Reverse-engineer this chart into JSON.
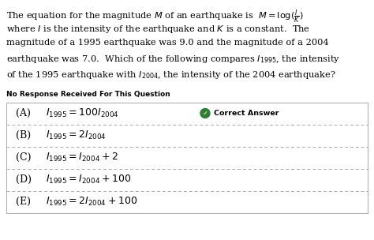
{
  "background_color": "#ffffff",
  "question_lines": [
    "The equation for the magnitude $M$ of an earthquake is  $M = \\log(\\frac{I}{K})$",
    "where $I$ is the intensity of the earthquake and $K$ is a constant.  The",
    "magnitude of a 1995 earthquake was 9.0 and the magnitude of a 2004",
    "earthquake was 7.0.  Which of the following compares $I_{1995}$, the intensity",
    "of the 1995 earthquake with $I_{2004}$, the intensity of the 2004 earthquake?"
  ],
  "no_response_label": "No Response Received For This Question",
  "choices": [
    {
      "label": "(A)",
      "formula": "$I_{1995} = 100I_{2004}$",
      "correct": true
    },
    {
      "label": "(B)",
      "formula": "$I_{1995} = 2I_{2004}$",
      "correct": false
    },
    {
      "label": "(C)",
      "formula": "$I_{1995} = I_{2004} + 2$",
      "correct": false
    },
    {
      "label": "(D)",
      "formula": "$I_{1995} = I_{2004} + 100$",
      "correct": false
    },
    {
      "label": "(E)",
      "formula": "$I_{1995} = 2I_{2004} + 100$",
      "correct": false
    }
  ],
  "correct_answer_text": "Correct Answer",
  "correct_icon_color": "#2e7d32",
  "border_color": "#aaaaaa",
  "text_color": "#000000",
  "font_size_question": 8.2,
  "font_size_choices": 9.0,
  "font_size_label": 6.8,
  "font_size_no_resp": 6.5
}
